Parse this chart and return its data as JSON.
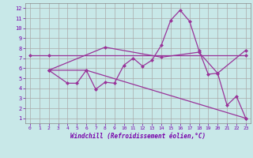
{
  "background_color": "#c8e8e8",
  "grid_color": "#aaaaaa",
  "line_color": "#993399",
  "xlabel": "Windchill (Refroidissement éolien,°C)",
  "xlim": [
    -0.5,
    23.5
  ],
  "ylim": [
    0.5,
    12.5
  ],
  "xticks": [
    0,
    1,
    2,
    3,
    4,
    5,
    6,
    7,
    8,
    9,
    10,
    11,
    12,
    13,
    14,
    15,
    16,
    17,
    18,
    19,
    20,
    21,
    22,
    23
  ],
  "yticks": [
    1,
    2,
    3,
    4,
    5,
    6,
    7,
    8,
    9,
    10,
    11,
    12
  ],
  "line1_x": [
    0,
    2,
    23
  ],
  "line1_y": [
    7.3,
    7.3,
    7.3
  ],
  "line2_x": [
    2,
    4,
    5,
    6,
    7,
    8,
    9,
    10,
    11,
    12,
    13,
    14,
    15,
    16,
    17,
    18,
    19,
    20,
    21,
    22,
    23
  ],
  "line2_y": [
    5.8,
    4.5,
    4.5,
    5.8,
    3.9,
    4.6,
    4.5,
    6.3,
    7.0,
    6.2,
    6.8,
    8.3,
    10.8,
    11.8,
    10.7,
    7.8,
    5.4,
    5.5,
    2.3,
    3.2,
    1.0
  ],
  "line3_x": [
    2,
    6,
    23
  ],
  "line3_y": [
    5.8,
    5.8,
    1.0
  ],
  "line4_x": [
    2,
    8,
    14,
    18,
    20,
    23
  ],
  "line4_y": [
    5.8,
    8.1,
    7.1,
    7.6,
    5.5,
    7.8
  ]
}
